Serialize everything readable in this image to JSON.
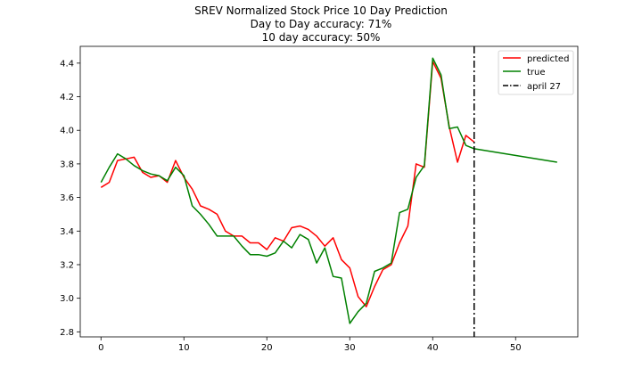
{
  "chart_data": {
    "type": "line",
    "title": "SREV Normalized Stock Price 10 Day Prediction",
    "subtitle_lines": [
      "Day to Day accuracy: 71%",
      "10 day accuracy: 50%"
    ],
    "xlim": [
      -2.5,
      57.5
    ],
    "ylim": [
      2.77,
      4.5
    ],
    "xticks": [
      0,
      10,
      20,
      30,
      40,
      50
    ],
    "yticks": [
      2.8,
      3.0,
      3.2,
      3.4,
      3.6,
      3.8,
      4.0,
      4.2,
      4.4
    ],
    "ytick_labels": [
      "2.8",
      "3.0",
      "3.2",
      "3.4",
      "3.6",
      "3.8",
      "4.0",
      "4.2",
      "4.4"
    ],
    "series": [
      {
        "name": "predicted",
        "color": "#ff0000",
        "x": [
          0,
          1,
          2,
          3,
          4,
          5,
          6,
          7,
          8,
          9,
          10,
          11,
          12,
          13,
          14,
          15,
          16,
          17,
          18,
          19,
          20,
          21,
          22,
          23,
          24,
          25,
          26,
          27,
          28,
          29,
          30,
          31,
          32,
          33,
          34,
          35,
          36,
          37,
          38,
          39,
          40,
          41,
          42,
          43,
          44,
          45
        ],
        "y": [
          3.66,
          3.69,
          3.82,
          3.83,
          3.84,
          3.75,
          3.72,
          3.73,
          3.69,
          3.82,
          3.72,
          3.65,
          3.55,
          3.53,
          3.5,
          3.4,
          3.37,
          3.37,
          3.33,
          3.33,
          3.29,
          3.36,
          3.34,
          3.42,
          3.43,
          3.41,
          3.37,
          3.31,
          3.36,
          3.23,
          3.18,
          3.01,
          2.95,
          3.07,
          3.17,
          3.2,
          3.33,
          3.43,
          3.8,
          3.78,
          4.41,
          4.31,
          4.02,
          3.81,
          3.97,
          3.93
        ]
      },
      {
        "name": "true",
        "color": "#008000",
        "x": [
          0,
          1,
          2,
          3,
          4,
          5,
          6,
          7,
          8,
          9,
          10,
          11,
          12,
          13,
          14,
          15,
          16,
          17,
          18,
          19,
          20,
          21,
          22,
          23,
          24,
          25,
          26,
          27,
          28,
          29,
          30,
          31,
          32,
          33,
          34,
          35,
          36,
          37,
          38,
          39,
          40,
          41,
          42,
          43,
          44,
          45,
          55
        ],
        "y": [
          3.69,
          3.78,
          3.86,
          3.83,
          3.79,
          3.76,
          3.74,
          3.73,
          3.7,
          3.78,
          3.73,
          3.55,
          3.5,
          3.44,
          3.37,
          3.37,
          3.37,
          3.31,
          3.26,
          3.26,
          3.25,
          3.27,
          3.34,
          3.3,
          3.38,
          3.35,
          3.21,
          3.3,
          3.13,
          3.12,
          2.85,
          2.92,
          2.97,
          3.16,
          3.18,
          3.21,
          3.51,
          3.53,
          3.72,
          3.79,
          4.43,
          4.33,
          4.01,
          4.02,
          3.91,
          3.89,
          3.81
        ]
      }
    ],
    "vline": {
      "name": "april 27",
      "x": 45,
      "color": "#000000"
    },
    "legend": {
      "position": "top-right",
      "entries": [
        "predicted",
        "true",
        "april 27"
      ]
    },
    "grid": false
  }
}
